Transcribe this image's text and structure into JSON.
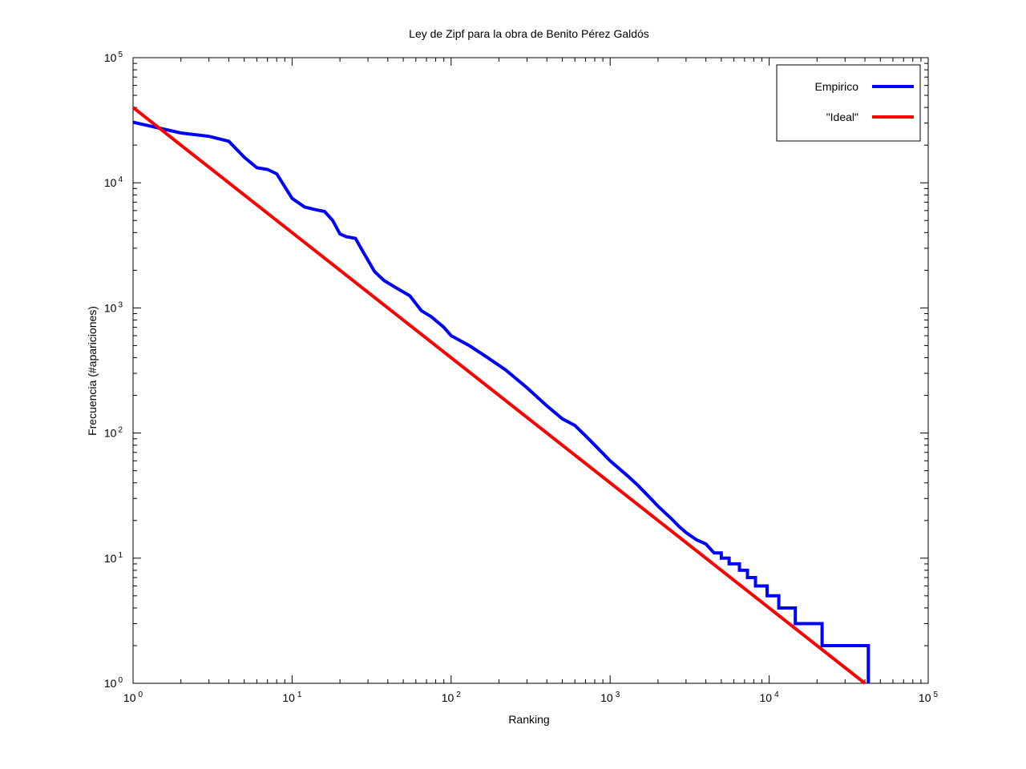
{
  "chart_data": {
    "type": "line",
    "title": "Ley de Zipf para la obra de Benito Pérez Galdós",
    "xlabel": "Ranking",
    "ylabel": "Frecuencia (#apariciones)",
    "xscale": "log",
    "yscale": "log",
    "xlim": [
      1,
      100000
    ],
    "ylim": [
      1,
      100000
    ],
    "x_ticks": [
      {
        "base": "10",
        "exp": "0"
      },
      {
        "base": "10",
        "exp": "1"
      },
      {
        "base": "10",
        "exp": "2"
      },
      {
        "base": "10",
        "exp": "3"
      },
      {
        "base": "10",
        "exp": "4"
      },
      {
        "base": "10",
        "exp": "5"
      }
    ],
    "y_ticks": [
      {
        "base": "10",
        "exp": "0"
      },
      {
        "base": "10",
        "exp": "1"
      },
      {
        "base": "10",
        "exp": "2"
      },
      {
        "base": "10",
        "exp": "3"
      },
      {
        "base": "10",
        "exp": "4"
      },
      {
        "base": "10",
        "exp": "5"
      }
    ],
    "legend_position": "top-right",
    "grid": false,
    "series": [
      {
        "name": "Empirico",
        "color": "#0000ff",
        "step": true,
        "points": [
          [
            1,
            30500
          ],
          [
            2,
            25000
          ],
          [
            3,
            23500
          ],
          [
            4,
            21500
          ],
          [
            5,
            16000
          ],
          [
            6,
            13200
          ],
          [
            7,
            12800
          ],
          [
            8,
            11800
          ],
          [
            10,
            7500
          ],
          [
            12,
            6400
          ],
          [
            14,
            6100
          ],
          [
            16,
            5900
          ],
          [
            18,
            5000
          ],
          [
            20,
            3900
          ],
          [
            22,
            3700
          ],
          [
            25,
            3600
          ],
          [
            28,
            2800
          ],
          [
            33,
            1950
          ],
          [
            38,
            1650
          ],
          [
            45,
            1450
          ],
          [
            55,
            1250
          ],
          [
            65,
            950
          ],
          [
            75,
            850
          ],
          [
            90,
            700
          ],
          [
            100,
            600
          ],
          [
            130,
            500
          ],
          [
            170,
            400
          ],
          [
            220,
            320
          ],
          [
            300,
            230
          ],
          [
            400,
            165
          ],
          [
            500,
            130
          ],
          [
            600,
            115
          ],
          [
            700,
            95
          ],
          [
            800,
            80
          ],
          [
            1000,
            60
          ],
          [
            1300,
            45
          ],
          [
            1500,
            38
          ],
          [
            1800,
            30
          ],
          [
            2000,
            26
          ],
          [
            2400,
            21
          ],
          [
            2700,
            18
          ],
          [
            3000,
            16
          ],
          [
            3500,
            14
          ],
          [
            4000,
            13
          ],
          [
            4500,
            11
          ],
          [
            5000,
            10
          ],
          [
            5600,
            9
          ],
          [
            6500,
            8
          ],
          [
            7300,
            7
          ],
          [
            8200,
            6
          ],
          [
            9700,
            5
          ],
          [
            11500,
            4
          ],
          [
            14600,
            3
          ],
          [
            21500,
            2
          ],
          [
            42000,
            1
          ]
        ]
      },
      {
        "name": "\"Ideal\"",
        "color": "#ff0000",
        "step": false,
        "points": [
          [
            1,
            40000
          ],
          [
            40000,
            1
          ]
        ]
      }
    ]
  }
}
